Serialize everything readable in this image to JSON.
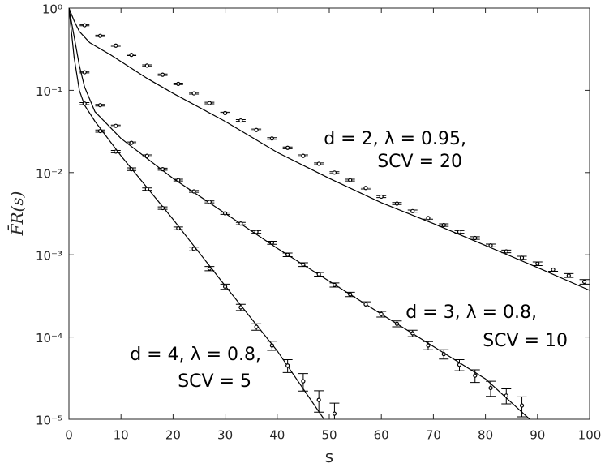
{
  "chart_data": {
    "type": "scatter",
    "xlabel": "s",
    "ylabel": "F̄R(s)",
    "xlim": [
      0,
      100
    ],
    "ylim": [
      1e-05,
      1
    ],
    "log_y": true,
    "xticks": [
      0,
      10,
      20,
      30,
      40,
      50,
      60,
      70,
      80,
      90,
      100
    ],
    "yticks": [
      {
        "value": 1,
        "label": "10⁰"
      },
      {
        "value": 0.1,
        "label": "10⁻¹"
      },
      {
        "value": 0.01,
        "label": "10⁻²"
      },
      {
        "value": 0.001,
        "label": "10⁻³"
      },
      {
        "value": 0.0001,
        "label": "10⁻⁴"
      },
      {
        "value": 1e-05,
        "label": "10⁻⁵"
      }
    ],
    "color": "#000000",
    "series": [
      {
        "label": [
          "d = 2, λ = 0.95,",
          "SCV = 20"
        ],
        "x": [
          3,
          6,
          9,
          12,
          15,
          18,
          21,
          24,
          27,
          30,
          33,
          36,
          39,
          42,
          45,
          48,
          51,
          54,
          57,
          60,
          63,
          66,
          69,
          72,
          75,
          78,
          81,
          84,
          87,
          90,
          93,
          96,
          99
        ],
        "values": [
          0.62,
          0.46,
          0.35,
          0.27,
          0.2,
          0.155,
          0.12,
          0.092,
          0.07,
          0.053,
          0.043,
          0.033,
          0.026,
          0.02,
          0.016,
          0.0128,
          0.01,
          0.0081,
          0.0065,
          0.0051,
          0.0042,
          0.0034,
          0.0028,
          0.0023,
          0.0019,
          0.0016,
          0.0013,
          0.0011,
          0.00092,
          0.00078,
          0.00066,
          0.00056,
          0.00047
        ],
        "errors": [
          0.01,
          0.008,
          0.006,
          0.005,
          0.004,
          0.003,
          0.0025,
          0.002,
          0.0015,
          0.0012,
          0.001,
          0.0008,
          0.0006,
          0.0005,
          0.0004,
          0.0003,
          0.00025,
          0.0002,
          0.00017,
          0.00014,
          0.00012,
          0.0001,
          9e-05,
          8e-05,
          7e-05,
          6e-05,
          5e-05,
          4e-05,
          4e-05,
          4e-05,
          3e-05,
          3e-05,
          3e-05
        ],
        "fit_x": [
          0,
          1,
          2,
          4,
          8,
          15,
          20,
          30,
          40,
          50,
          60,
          70,
          80,
          90,
          100
        ],
        "fit_values": [
          1,
          0.7,
          0.52,
          0.38,
          0.27,
          0.14,
          0.092,
          0.042,
          0.0176,
          0.0085,
          0.0043,
          0.0024,
          0.0013,
          0.0007,
          0.00037
        ]
      },
      {
        "label": [
          "d = 3, λ = 0.8,",
          "SCV = 10"
        ],
        "x": [
          3,
          6,
          9,
          12,
          15,
          18,
          21,
          24,
          27,
          30,
          33,
          36,
          39,
          42,
          45,
          48,
          51,
          54,
          57,
          60,
          63,
          66,
          69,
          72,
          75,
          78,
          81,
          84,
          87
        ],
        "values": [
          0.166,
          0.066,
          0.037,
          0.023,
          0.016,
          0.011,
          0.0081,
          0.0059,
          0.0044,
          0.0032,
          0.0024,
          0.0019,
          0.0014,
          0.001,
          0.00076,
          0.00058,
          0.00043,
          0.00033,
          0.00025,
          0.00019,
          0.000145,
          0.000111,
          7.9e-05,
          6.2e-05,
          4.6e-05,
          3.4e-05,
          2.4e-05,
          1.94e-05,
          1.47e-05
        ],
        "errors": [
          0.003,
          0.0015,
          0.0008,
          0.0005,
          0.0004,
          0.0003,
          0.0002,
          0.00015,
          0.00012,
          0.0001,
          8e-05,
          7e-05,
          6e-05,
          5e-05,
          4e-05,
          3e-05,
          2.5e-05,
          2e-05,
          1.8e-05,
          1.5e-05,
          1.2e-05,
          1e-05,
          9e-06,
          8e-06,
          7e-06,
          6e-06,
          5e-06,
          4e-06,
          4e-06
        ],
        "fit_x": [
          0,
          1,
          2,
          3,
          5,
          10,
          20,
          40,
          60,
          80,
          88.5
        ],
        "fit_values": [
          1,
          0.45,
          0.2,
          0.11,
          0.055,
          0.026,
          0.0085,
          0.0012,
          0.00019,
          3.1e-05,
          1e-05
        ]
      },
      {
        "label": [
          "d = 4, λ = 0.8,",
          "SCV = 5"
        ],
        "x": [
          3,
          6,
          9,
          12,
          15,
          18,
          21,
          24,
          27,
          30,
          33,
          36,
          39,
          42,
          45,
          48,
          51
        ],
        "values": [
          0.069,
          0.032,
          0.018,
          0.011,
          0.0063,
          0.0037,
          0.0021,
          0.00118,
          0.00068,
          0.00041,
          0.00023,
          0.000133,
          7.9e-05,
          4.5e-05,
          2.9e-05,
          1.72e-05,
          1.17e-05
        ],
        "errors": [
          0.002,
          0.001,
          0.0006,
          0.0004,
          0.0002,
          0.00013,
          8e-05,
          6e-05,
          4e-05,
          3e-05,
          2e-05,
          1.2e-05,
          1e-05,
          8e-06,
          7e-06,
          5e-06,
          4e-06
        ],
        "fit_x": [
          0,
          0.5,
          1,
          2,
          3,
          5,
          10,
          20,
          30,
          40,
          49
        ],
        "fit_values": [
          1,
          0.5,
          0.25,
          0.1,
          0.066,
          0.042,
          0.016,
          0.0027,
          0.00042,
          6.8e-05,
          1e-05
        ]
      }
    ]
  }
}
